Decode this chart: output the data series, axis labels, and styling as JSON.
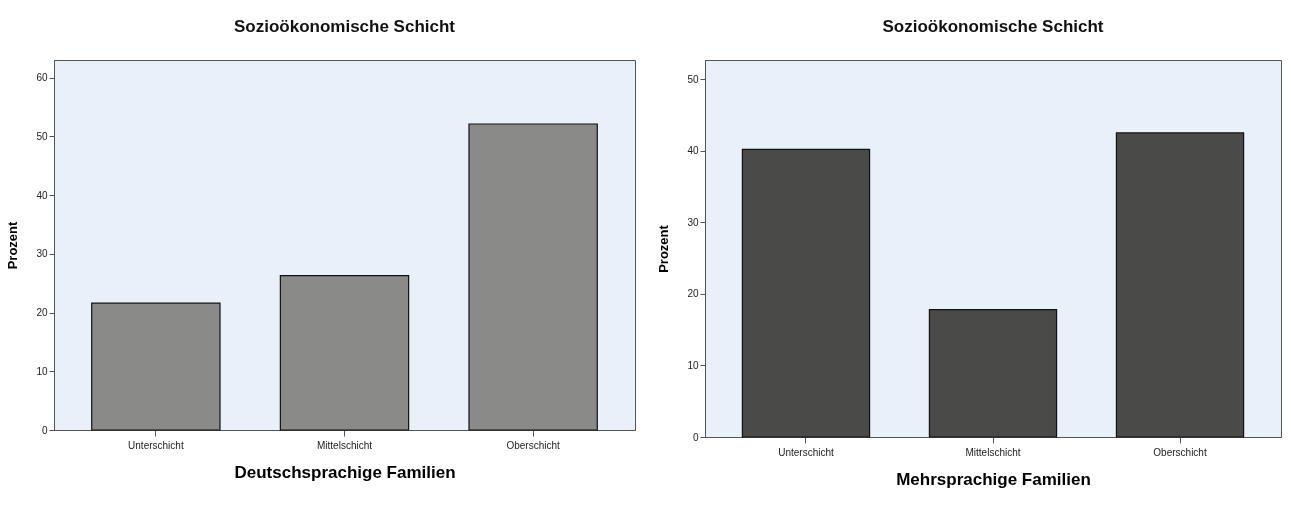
{
  "chart_data": [
    {
      "type": "bar",
      "title": "Sozioökonomische Schicht",
      "xlabel": "Deutschsprachige Familien",
      "ylabel": "Prozent",
      "categories": [
        "Unterschicht",
        "Mittelschicht",
        "Oberschicht"
      ],
      "values": [
        21.6,
        26.3,
        52.1
      ],
      "color": "#8a8a88",
      "ylim": [
        0,
        63
      ],
      "yticks": [
        0,
        10,
        20,
        30,
        40,
        50,
        60
      ],
      "grid": false
    },
    {
      "type": "bar",
      "title": "Sozioökonomische Schicht",
      "xlabel": "Mehrsprachige Familien",
      "ylabel": "Prozent",
      "categories": [
        "Unterschicht",
        "Mittelschicht",
        "Oberschicht"
      ],
      "values": [
        40.2,
        17.8,
        42.5
      ],
      "color": "#4a4a48",
      "ylim": [
        0,
        52.7
      ],
      "yticks": [
        0,
        10,
        20,
        30,
        40,
        50
      ],
      "grid": false
    }
  ]
}
